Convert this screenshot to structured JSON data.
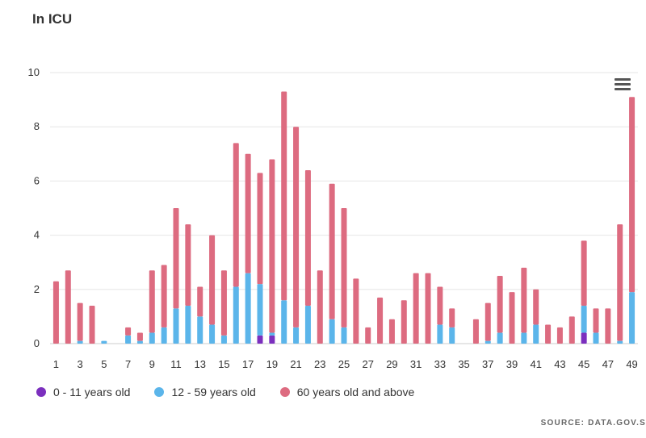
{
  "title": "In ICU",
  "source": "SOURCE: DATA.GOV.S",
  "colors": {
    "series_0_11": "#7b2fbe",
    "series_12_59": "#5bb5ea",
    "series_60_plus": "#dd6b80"
  },
  "chart_data": {
    "type": "bar",
    "stacked": true,
    "title": "In ICU",
    "xlabel": "",
    "ylabel": "",
    "ylim": [
      0,
      10
    ],
    "yticks": [
      0,
      2,
      4,
      6,
      8,
      10
    ],
    "x_tick_labels_every": 2,
    "grid": true,
    "legend_position": "bottom-left",
    "categories": [
      1,
      2,
      3,
      4,
      5,
      6,
      7,
      8,
      9,
      10,
      11,
      12,
      13,
      14,
      15,
      16,
      17,
      18,
      19,
      20,
      21,
      22,
      23,
      24,
      25,
      26,
      27,
      28,
      29,
      30,
      31,
      32,
      33,
      34,
      35,
      36,
      37,
      38,
      39,
      40,
      41,
      42,
      43,
      44,
      45,
      46,
      47,
      48,
      49
    ],
    "series": [
      {
        "name": "0 - 11 years old",
        "color": "#7b2fbe",
        "values": [
          0,
          0,
          0,
          0,
          0,
          0,
          0,
          0,
          0,
          0,
          0,
          0,
          0,
          0,
          0,
          0,
          0,
          0.3,
          0.3,
          0,
          0,
          0,
          0,
          0,
          0,
          0,
          0,
          0,
          0,
          0,
          0,
          0,
          0,
          0,
          0,
          0,
          0,
          0,
          0,
          0,
          0,
          0,
          0,
          0,
          0.4,
          0,
          0,
          0,
          0
        ]
      },
      {
        "name": "12 - 59 years old",
        "color": "#5bb5ea",
        "values": [
          0,
          0,
          0.1,
          0,
          0.1,
          0,
          0.3,
          0.1,
          0.4,
          0.6,
          1.3,
          1.4,
          1.0,
          0.7,
          0.3,
          2.1,
          2.6,
          1.9,
          0.1,
          1.6,
          0.6,
          1.4,
          0,
          0.9,
          0.6,
          0,
          0,
          0,
          0,
          0,
          0,
          0,
          0.7,
          0.6,
          0,
          0,
          0.1,
          0.4,
          0,
          0.4,
          0.7,
          0,
          0,
          0,
          1.0,
          0.4,
          0,
          0.1,
          1.9
        ]
      },
      {
        "name": "60 years old and above",
        "color": "#dd6b80",
        "values": [
          2.3,
          2.7,
          1.4,
          1.4,
          0,
          0,
          0.3,
          0.3,
          2.3,
          2.3,
          3.7,
          3.0,
          1.1,
          3.3,
          2.4,
          5.3,
          4.4,
          4.1,
          6.4,
          7.7,
          7.4,
          5.0,
          2.7,
          5.0,
          4.4,
          2.4,
          0.6,
          1.7,
          0.9,
          1.6,
          2.6,
          2.6,
          1.4,
          0.7,
          0,
          0.9,
          1.4,
          2.1,
          1.9,
          2.4,
          1.3,
          0.7,
          0.6,
          1.0,
          2.4,
          0.9,
          1.3,
          4.3,
          7.2
        ]
      }
    ]
  }
}
